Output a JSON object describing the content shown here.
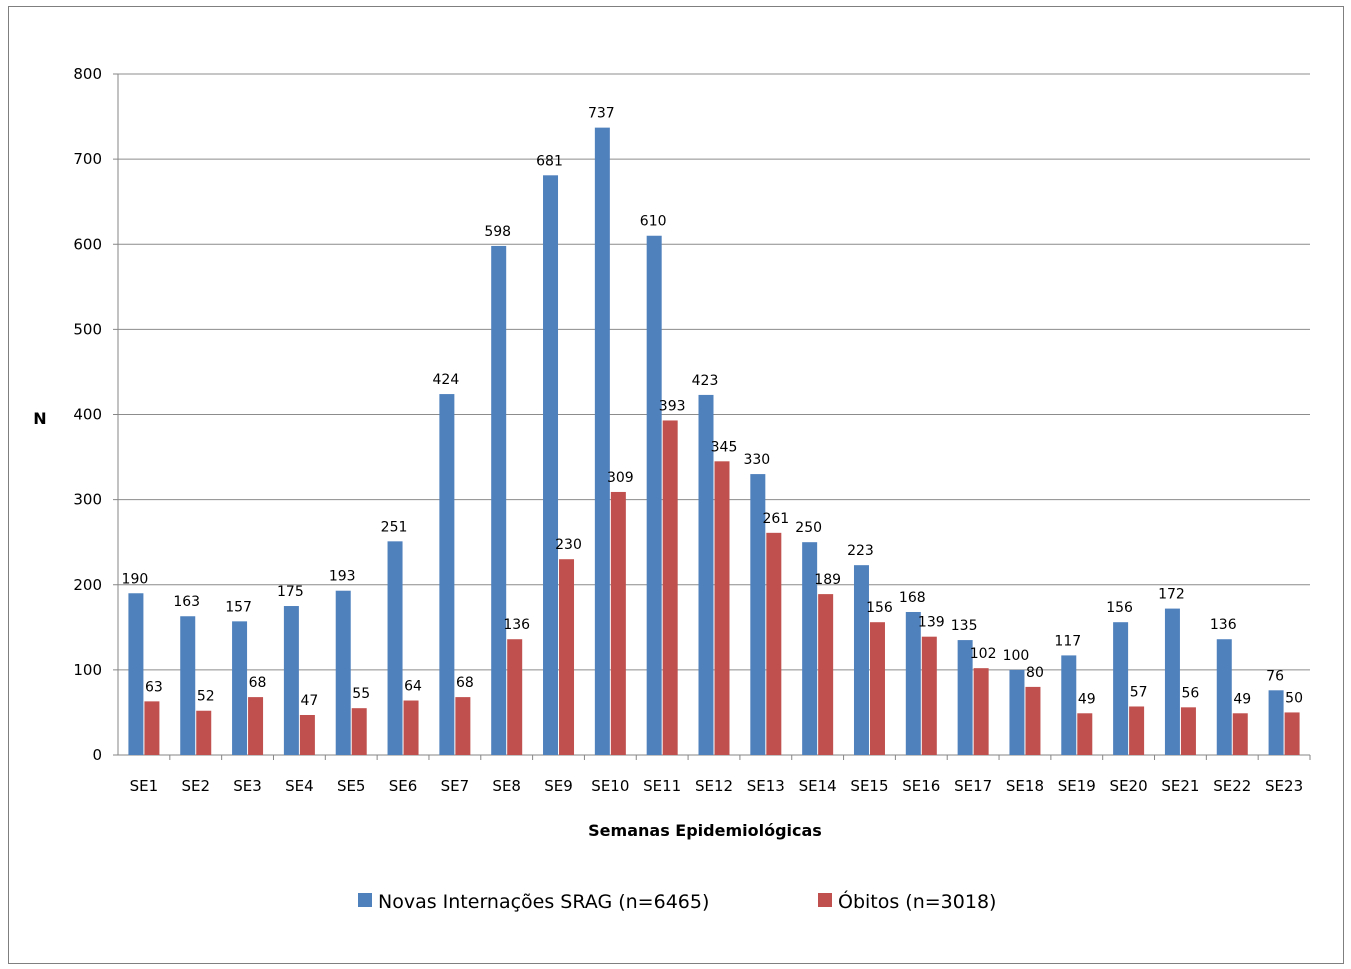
{
  "chart_data": {
    "type": "bar",
    "title": "",
    "xlabel": "Semanas Epidemiológicas",
    "ylabel": "N",
    "ylim": [
      0,
      800
    ],
    "yticks": [
      0,
      100,
      200,
      300,
      400,
      500,
      600,
      700,
      800
    ],
    "grid": true,
    "legend_position": "bottom",
    "categories": [
      "SE1",
      "SE2",
      "SE3",
      "SE4",
      "SE5",
      "SE6",
      "SE7",
      "SE8",
      "SE9",
      "SE10",
      "SE11",
      "SE12",
      "SE13",
      "SE14",
      "SE15",
      "SE16",
      "SE17",
      "SE18",
      "SE19",
      "SE20",
      "SE21",
      "SE22",
      "SE23"
    ],
    "series": [
      {
        "name": "Novas Internações SRAG (n=6465)",
        "color": "#4f81bd",
        "values": [
          190,
          163,
          157,
          175,
          193,
          251,
          424,
          598,
          681,
          737,
          610,
          423,
          330,
          250,
          223,
          168,
          135,
          100,
          117,
          156,
          172,
          136,
          76
        ]
      },
      {
        "name": "Óbitos (n=3018)",
        "color": "#c0504d",
        "values": [
          63,
          52,
          68,
          47,
          55,
          64,
          68,
          136,
          230,
          309,
          393,
          345,
          261,
          189,
          156,
          139,
          102,
          80,
          49,
          57,
          56,
          49,
          50
        ]
      }
    ]
  }
}
